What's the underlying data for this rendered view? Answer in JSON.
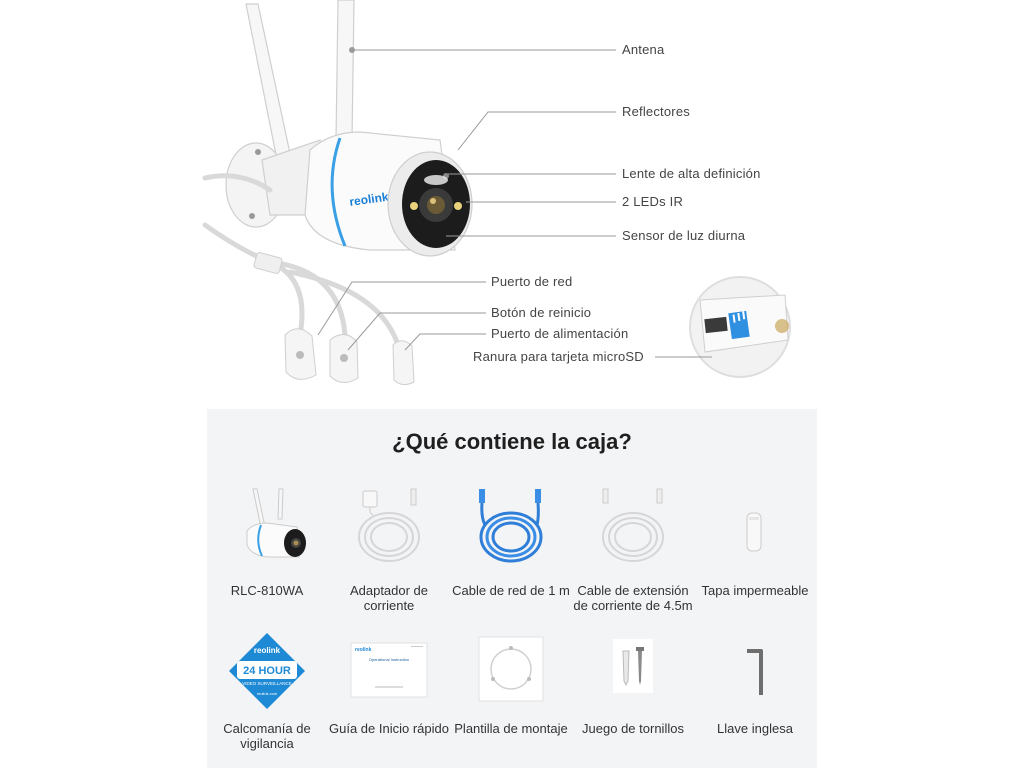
{
  "callouts": {
    "antenna": "Antena",
    "reflectors": "Reflectores",
    "lens": "Lente de alta definición",
    "ir_leds": "2 LEDs IR",
    "daylight_sensor": "Sensor de luz diurna",
    "network_port": "Puerto de red",
    "reset_button": "Botón de reinicio",
    "power_port": "Puerto de alimentación",
    "microsd_slot": "Ranura para tarjeta microSD"
  },
  "brand": "reolink",
  "box": {
    "title": "¿Qué contiene la caja?",
    "row1": [
      {
        "label": "RLC-810WA",
        "icon": "camera-icon"
      },
      {
        "label": "Adaptador de corriente",
        "icon": "power-adapter-icon"
      },
      {
        "label": "Cable de red de 1 m",
        "icon": "network-cable-icon"
      },
      {
        "label": "Cable de extensión de corriente de 4.5m",
        "icon": "extension-cable-icon"
      },
      {
        "label": "Tapa impermeable",
        "icon": "waterproof-cap-icon"
      }
    ],
    "row2": [
      {
        "label": "Calcomanía de vigilancia",
        "icon": "sticker-icon"
      },
      {
        "label": "Guía de Inicio rápido",
        "icon": "quick-guide-icon"
      },
      {
        "label": "Plantilla de montaje",
        "icon": "mounting-template-icon"
      },
      {
        "label": "Juego de tornillos",
        "icon": "screws-icon"
      },
      {
        "label": "Llave inglesa",
        "icon": "hex-key-icon"
      }
    ],
    "sticker": {
      "brand": "reolink",
      "headline": "24 HOUR",
      "sub": "VIDEO SURVEILLANCE",
      "url": "reolink.com"
    },
    "guide_heading": "Operational Instruction"
  },
  "colors": {
    "accent_blue": "#1a7fd6",
    "panel_bg": "#f3f4f6",
    "callout_line": "#9a9a9a"
  }
}
